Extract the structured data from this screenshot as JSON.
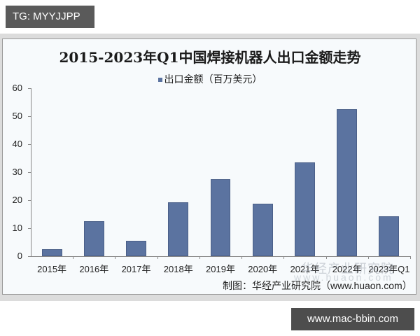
{
  "tag_top": "TG: MYYJJPP",
  "tag_bottom": "www.mac-bbin.com",
  "chart_data": {
    "type": "bar",
    "title": "2015-2023年Q1中国焊接机器人出口金额走势",
    "legend": [
      "出口金额（百万美元）"
    ],
    "legend_position": "top",
    "categories": [
      "2015年",
      "2016年",
      "2017年",
      "2018年",
      "2019年",
      "2020年",
      "2021年",
      "2022年",
      "2023年Q1"
    ],
    "series": [
      {
        "name": "出口金额（百万美元）",
        "color": "#5b73a0",
        "values": [
          2.4,
          12.4,
          5.6,
          19.2,
          27.5,
          18.7,
          33.6,
          52.6,
          14.2
        ]
      }
    ],
    "xlabel": "",
    "ylabel": "",
    "ylim": [
      0,
      60
    ],
    "yticks": [
      "0",
      "10",
      "20",
      "30",
      "40",
      "50",
      "60"
    ],
    "grid": false,
    "source": "制图：华经产业研究院（www.huaon.com）",
    "watermark": "华经产业研究院",
    "watermark_url": "www.huaon.com"
  }
}
